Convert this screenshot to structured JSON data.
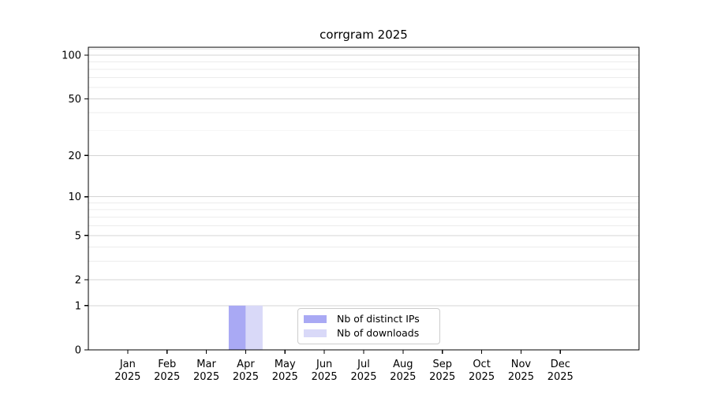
{
  "title": "corrgram 2025",
  "chart_data": {
    "type": "bar",
    "title": "corrgram 2025",
    "categories": [
      "Jan 2025",
      "Feb 2025",
      "Mar 2025",
      "Apr 2025",
      "May 2025",
      "Jun 2025",
      "Jul 2025",
      "Aug 2025",
      "Sep 2025",
      "Oct 2025",
      "Nov 2025",
      "Dec 2025"
    ],
    "series": [
      {
        "name": "Nb of distinct IPs",
        "color": "#a9a9f4",
        "values": [
          0,
          0,
          0,
          1,
          0,
          0,
          0,
          0,
          0,
          0,
          0,
          0
        ]
      },
      {
        "name": "Nb of downloads",
        "color": "#d9d9f8",
        "values": [
          0,
          0,
          0,
          1,
          0,
          0,
          0,
          0,
          0,
          0,
          0,
          0
        ]
      }
    ],
    "xlabel": "",
    "ylabel": "",
    "yscale": "log1p",
    "ylim": [
      0,
      113
    ],
    "y_ticks": [
      0,
      1,
      2,
      5,
      10,
      20,
      50,
      100
    ],
    "y_minor_ticks": [
      3,
      4,
      6,
      7,
      8,
      9,
      30,
      40,
      60,
      70,
      80,
      90,
      110
    ],
    "grid": "horizontal",
    "legend_position": "lower center"
  },
  "style": {
    "axis_color": "#000000",
    "tick_label_color": "#000000",
    "grid_major_color": "#d4d4d4",
    "grid_minor_color": "#ececec",
    "legend_border_color": "#cccccc",
    "background": "#ffffff"
  }
}
